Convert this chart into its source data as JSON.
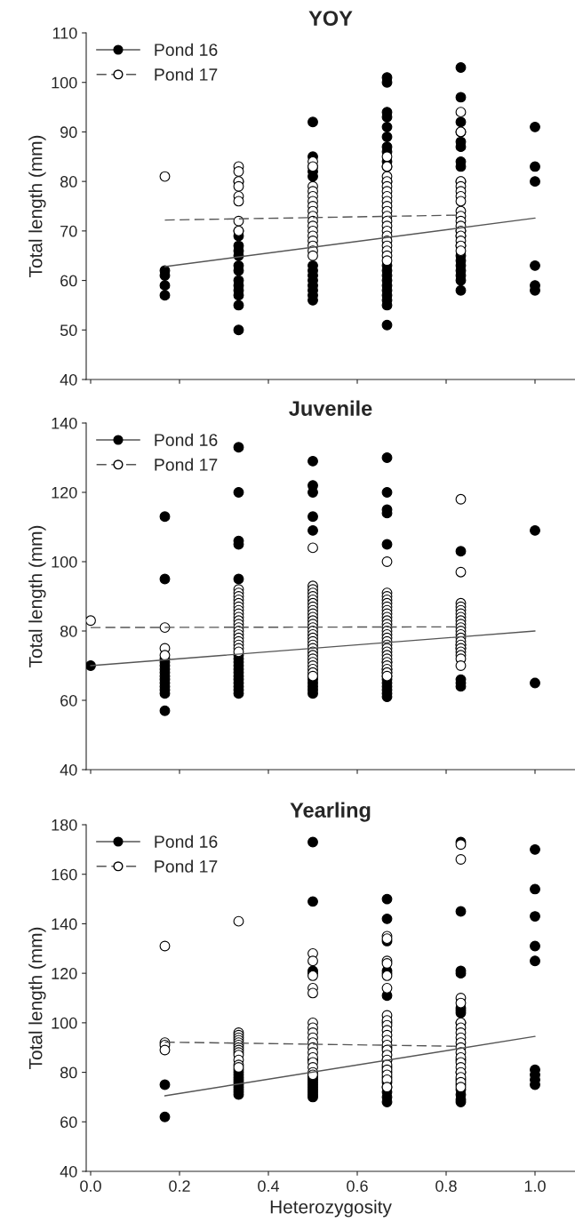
{
  "chart_data": [
    {
      "type": "scatter",
      "title": "YOY",
      "ylabel": "Total length (mm)",
      "xlim": [
        -0.01,
        1.09
      ],
      "xticks": [
        0.0,
        0.2,
        0.4,
        0.6,
        0.8,
        1.0
      ],
      "ylim": [
        40,
        110
      ],
      "yticks": [
        40,
        50,
        60,
        70,
        80,
        90,
        100,
        110
      ],
      "tick_labels": "y",
      "legend": "top left",
      "grid": false,
      "marker": "circle",
      "series": [
        {
          "name": "Pond 16",
          "color": "#000000",
          "x": [
            0.167,
            0.167,
            0.167,
            0.167,
            0.333,
            0.333,
            0.333,
            0.333,
            0.333,
            0.333,
            0.333,
            0.333,
            0.333,
            0.333,
            0.333,
            0.333,
            0.333,
            0.333,
            0.5,
            0.5,
            0.5,
            0.5,
            0.5,
            0.5,
            0.5,
            0.5,
            0.5,
            0.5,
            0.5,
            0.5,
            0.5,
            0.667,
            0.667,
            0.667,
            0.667,
            0.667,
            0.667,
            0.667,
            0.667,
            0.667,
            0.667,
            0.667,
            0.667,
            0.667,
            0.667,
            0.667,
            0.667,
            0.667,
            0.667,
            0.667,
            0.667,
            0.667,
            0.833,
            0.833,
            0.833,
            0.833,
            0.833,
            0.833,
            0.833,
            0.833,
            0.833,
            0.833,
            0.833,
            0.833,
            0.833,
            0.833,
            0.833,
            0.833,
            0.833,
            0.833,
            0.833,
            1.0,
            1.0,
            1.0,
            1.0,
            1.0,
            1.0
          ],
          "values": [
            62,
            61,
            59,
            57,
            80,
            70,
            69,
            67,
            66,
            65,
            63,
            62,
            60,
            59,
            58,
            57,
            55,
            50,
            92,
            85,
            83,
            82,
            81,
            63,
            62,
            61,
            60,
            59,
            58,
            57,
            56,
            101,
            100,
            94,
            93,
            91,
            89,
            87,
            86,
            84,
            83,
            80,
            63,
            62,
            61,
            60,
            59,
            58,
            57,
            56,
            55,
            51,
            103,
            97,
            92,
            90,
            88,
            87,
            84,
            83,
            80,
            70,
            69,
            67,
            65,
            64,
            63,
            62,
            61,
            60,
            58,
            91,
            83,
            80,
            63,
            59,
            58
          ]
        },
        {
          "name": "Pond 17",
          "color": "#ffffff",
          "x": [
            0.167,
            0.333,
            0.333,
            0.333,
            0.333,
            0.333,
            0.333,
            0.333,
            0.333,
            0.5,
            0.5,
            0.5,
            0.5,
            0.5,
            0.5,
            0.5,
            0.5,
            0.5,
            0.5,
            0.5,
            0.5,
            0.5,
            0.5,
            0.5,
            0.5,
            0.5,
            0.667,
            0.667,
            0.667,
            0.667,
            0.667,
            0.667,
            0.667,
            0.667,
            0.667,
            0.667,
            0.667,
            0.667,
            0.667,
            0.667,
            0.667,
            0.667,
            0.667,
            0.667,
            0.667,
            0.667,
            0.833,
            0.833,
            0.833,
            0.833,
            0.833,
            0.833,
            0.833,
            0.833,
            0.833,
            0.833,
            0.833,
            0.833,
            0.833,
            0.833,
            0.833,
            0.833
          ],
          "values": [
            81,
            83,
            82,
            80,
            79,
            77,
            76,
            72,
            70,
            84,
            83,
            79,
            78,
            77,
            76,
            75,
            74,
            73,
            72,
            71,
            70,
            69,
            68,
            67,
            66,
            65,
            85,
            83,
            81,
            80,
            79,
            78,
            77,
            76,
            75,
            74,
            73,
            72,
            71,
            70,
            69,
            68,
            67,
            66,
            65,
            64,
            94,
            90,
            80,
            79,
            78,
            77,
            76,
            74,
            73,
            72,
            71,
            70,
            69,
            68,
            67,
            66
          ]
        },
        {
          "type": "line",
          "color": "#555555",
          "line_style": "solid",
          "marker": "none",
          "x": [
            0.167,
            1.0
          ],
          "values": [
            62.8,
            72.6
          ]
        },
        {
          "type": "line",
          "color": "#555555",
          "line_style": "dashed",
          "marker": "none",
          "x": [
            0.167,
            0.833
          ],
          "values": [
            72.2,
            73.2
          ]
        }
      ]
    },
    {
      "type": "scatter",
      "title": "Juvenile",
      "ylabel": "Total length (mm)",
      "xlim": [
        -0.01,
        1.09
      ],
      "xticks": [
        0.0,
        0.2,
        0.4,
        0.6,
        0.8,
        1.0
      ],
      "ylim": [
        40,
        140
      ],
      "yticks": [
        40,
        60,
        80,
        100,
        120,
        140
      ],
      "tick_labels": "y",
      "legend": "top left",
      "grid": false,
      "marker": "circle",
      "series": [
        {
          "name": "Pond 16",
          "color": "#000000",
          "x": [
            0.0,
            0.167,
            0.167,
            0.167,
            0.167,
            0.167,
            0.167,
            0.167,
            0.167,
            0.167,
            0.167,
            0.167,
            0.167,
            0.167,
            0.167,
            0.333,
            0.333,
            0.333,
            0.333,
            0.333,
            0.333,
            0.333,
            0.333,
            0.333,
            0.333,
            0.333,
            0.333,
            0.333,
            0.333,
            0.333,
            0.333,
            0.333,
            0.5,
            0.5,
            0.5,
            0.5,
            0.5,
            0.5,
            0.5,
            0.5,
            0.5,
            0.5,
            0.5,
            0.667,
            0.667,
            0.667,
            0.667,
            0.667,
            0.667,
            0.667,
            0.667,
            0.667,
            0.667,
            0.667,
            0.667,
            0.667,
            0.667,
            0.667,
            0.833,
            0.833,
            0.833,
            0.833,
            0.833,
            0.833,
            1.0,
            1.0
          ],
          "values": [
            70,
            113,
            95,
            72,
            71,
            70,
            69,
            68,
            67,
            66,
            65,
            64,
            63,
            62,
            57,
            133,
            120,
            106,
            105,
            95,
            73,
            72,
            71,
            70,
            69,
            68,
            67,
            66,
            65,
            64,
            63,
            62,
            129,
            122,
            120,
            113,
            109,
            67,
            66,
            65,
            64,
            63,
            62,
            130,
            120,
            115,
            114,
            105,
            71,
            69,
            68,
            67,
            66,
            65,
            64,
            63,
            62,
            61,
            103,
            76,
            75,
            66,
            65,
            64,
            109,
            65
          ]
        },
        {
          "name": "Pond 17",
          "color": "#ffffff",
          "x": [
            0.0,
            0.167,
            0.167,
            0.167,
            0.333,
            0.333,
            0.333,
            0.333,
            0.333,
            0.333,
            0.333,
            0.333,
            0.333,
            0.333,
            0.333,
            0.333,
            0.333,
            0.333,
            0.333,
            0.333,
            0.333,
            0.333,
            0.333,
            0.5,
            0.5,
            0.5,
            0.5,
            0.5,
            0.5,
            0.5,
            0.5,
            0.5,
            0.5,
            0.5,
            0.5,
            0.5,
            0.5,
            0.5,
            0.5,
            0.5,
            0.5,
            0.5,
            0.5,
            0.5,
            0.5,
            0.5,
            0.5,
            0.5,
            0.5,
            0.5,
            0.5,
            0.667,
            0.667,
            0.667,
            0.667,
            0.667,
            0.667,
            0.667,
            0.667,
            0.667,
            0.667,
            0.667,
            0.667,
            0.667,
            0.667,
            0.667,
            0.667,
            0.667,
            0.667,
            0.667,
            0.667,
            0.667,
            0.667,
            0.667,
            0.667,
            0.667,
            0.667,
            0.833,
            0.833,
            0.833,
            0.833,
            0.833,
            0.833,
            0.833,
            0.833,
            0.833,
            0.833,
            0.833,
            0.833,
            0.833,
            0.833,
            0.833,
            0.833,
            0.833,
            0.833,
            0.833,
            0.833
          ],
          "values": [
            83,
            81,
            75,
            73,
            92,
            91,
            90,
            89,
            88,
            87,
            86,
            85,
            84,
            83,
            82,
            81,
            80,
            79,
            78,
            77,
            76,
            75,
            74,
            104,
            93,
            92,
            91,
            90,
            89,
            88,
            87,
            86,
            85,
            84,
            83,
            82,
            81,
            80,
            79,
            78,
            77,
            76,
            75,
            74,
            73,
            72,
            71,
            70,
            69,
            68,
            67,
            100,
            91,
            90,
            89,
            88,
            87,
            86,
            85,
            84,
            83,
            82,
            81,
            80,
            79,
            78,
            77,
            76,
            75,
            74,
            73,
            72,
            71,
            70,
            69,
            68,
            67,
            118,
            97,
            88,
            87,
            86,
            85,
            84,
            83,
            82,
            81,
            80,
            79,
            78,
            77,
            76,
            75,
            74,
            73,
            72,
            70
          ]
        },
        {
          "type": "line",
          "color": "#555555",
          "line_style": "solid",
          "marker": "none",
          "x": [
            0.0,
            1.0
          ],
          "values": [
            70,
            80
          ]
        },
        {
          "type": "line",
          "color": "#555555",
          "line_style": "dashed",
          "marker": "none",
          "x": [
            0.0,
            0.833
          ],
          "values": [
            81,
            81.2
          ]
        }
      ]
    },
    {
      "type": "scatter",
      "title": "Yearling",
      "xlabel": "Heterozygosity",
      "ylabel": "Total length (mm)",
      "xlim": [
        -0.01,
        1.09
      ],
      "xticks": [
        {
          "value": 0,
          "label": "0.0"
        },
        0.2,
        0.4,
        0.6,
        0.8,
        {
          "value": 1,
          "label": "1.0"
        }
      ],
      "ylim": [
        40,
        180
      ],
      "yticks": [
        40,
        60,
        80,
        100,
        120,
        140,
        160,
        180
      ],
      "legend": "top left",
      "grid": false,
      "marker": "circle",
      "series": [
        {
          "name": "Pond 16",
          "color": "#000000",
          "x": [
            0.167,
            0.167,
            0.333,
            0.333,
            0.333,
            0.333,
            0.333,
            0.333,
            0.333,
            0.333,
            0.333,
            0.333,
            0.333,
            0.5,
            0.5,
            0.5,
            0.5,
            0.5,
            0.5,
            0.5,
            0.5,
            0.5,
            0.5,
            0.5,
            0.5,
            0.5,
            0.5,
            0.5,
            0.667,
            0.667,
            0.667,
            0.667,
            0.667,
            0.667,
            0.667,
            0.667,
            0.667,
            0.667,
            0.667,
            0.667,
            0.667,
            0.667,
            0.667,
            0.667,
            0.667,
            0.833,
            0.833,
            0.833,
            0.833,
            0.833,
            0.833,
            0.833,
            0.833,
            0.833,
            0.833,
            0.833,
            0.833,
            0.833,
            0.833,
            0.833,
            0.833,
            1.0,
            1.0,
            1.0,
            1.0,
            1.0,
            1.0,
            1.0,
            1.0,
            1.0
          ],
          "values": [
            75,
            62,
            81,
            80,
            79,
            78,
            77,
            76,
            75,
            74,
            73,
            72,
            71,
            173,
            149,
            121,
            120,
            85,
            79,
            78,
            77,
            76,
            75,
            74,
            73,
            72,
            71,
            70,
            150,
            142,
            133,
            121,
            120,
            111,
            100,
            90,
            85,
            82,
            80,
            78,
            76,
            74,
            72,
            70,
            68,
            173,
            145,
            121,
            120,
            106,
            105,
            104,
            100,
            85,
            80,
            77,
            75,
            73,
            71,
            69,
            68,
            170,
            154,
            143,
            131,
            125,
            81,
            79,
            77,
            75
          ]
        },
        {
          "name": "Pond 17",
          "color": "#ffffff",
          "x": [
            0.167,
            0.167,
            0.167,
            0.167,
            0.333,
            0.333,
            0.333,
            0.333,
            0.333,
            0.333,
            0.333,
            0.333,
            0.333,
            0.333,
            0.333,
            0.333,
            0.333,
            0.333,
            0.5,
            0.5,
            0.5,
            0.5,
            0.5,
            0.5,
            0.5,
            0.5,
            0.5,
            0.5,
            0.5,
            0.5,
            0.5,
            0.5,
            0.5,
            0.5,
            0.5,
            0.667,
            0.667,
            0.667,
            0.667,
            0.667,
            0.667,
            0.667,
            0.667,
            0.667,
            0.667,
            0.667,
            0.667,
            0.667,
            0.667,
            0.667,
            0.667,
            0.667,
            0.667,
            0.667,
            0.667,
            0.667,
            0.833,
            0.833,
            0.833,
            0.833,
            0.833,
            0.833,
            0.833,
            0.833,
            0.833,
            0.833,
            0.833,
            0.833,
            0.833,
            0.833,
            0.833,
            0.833,
            0.833,
            0.833
          ],
          "values": [
            131,
            92,
            91,
            89,
            141,
            96,
            95,
            94,
            93,
            92,
            91,
            90,
            89,
            88,
            87,
            85,
            83,
            82,
            128,
            125,
            119,
            114,
            112,
            100,
            98,
            96,
            94,
            92,
            90,
            88,
            86,
            84,
            82,
            80,
            79,
            135,
            134,
            125,
            124,
            119,
            114,
            103,
            101,
            99,
            97,
            95,
            93,
            91,
            89,
            87,
            85,
            83,
            81,
            79,
            77,
            74,
            172,
            166,
            110,
            108,
            100,
            98,
            96,
            94,
            92,
            90,
            88,
            86,
            84,
            82,
            80,
            78,
            76,
            74
          ]
        },
        {
          "type": "line",
          "color": "#555555",
          "line_style": "solid",
          "marker": "none",
          "x": [
            0.167,
            1.0
          ],
          "values": [
            70.5,
            94.5
          ]
        },
        {
          "type": "line",
          "color": "#555555",
          "line_style": "dashed",
          "marker": "none",
          "x": [
            0.167,
            0.833
          ],
          "values": [
            92.2,
            90.5
          ]
        }
      ]
    }
  ]
}
